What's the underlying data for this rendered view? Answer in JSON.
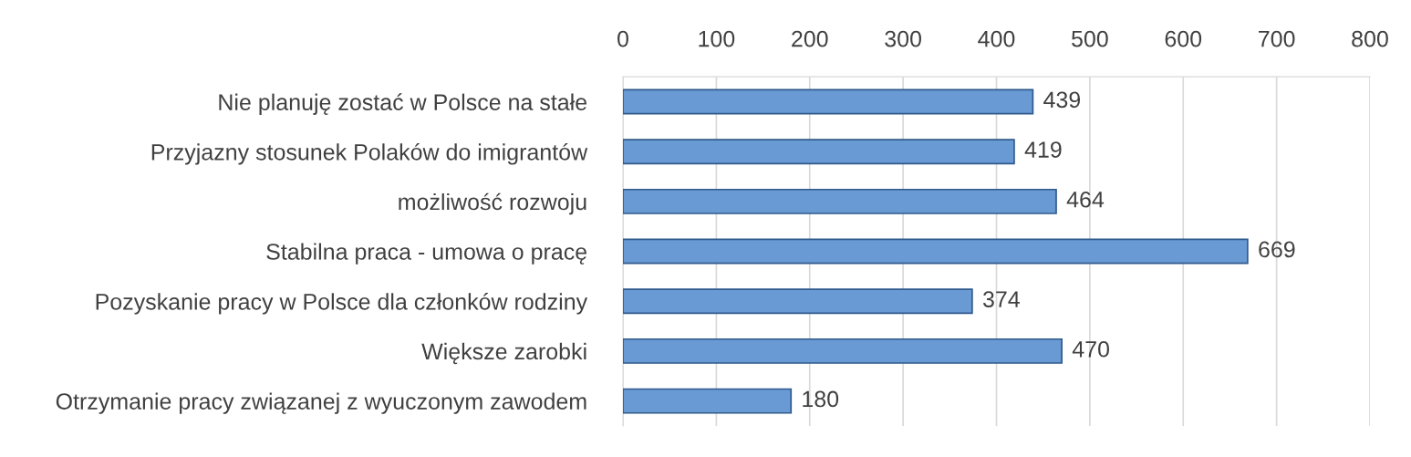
{
  "chart_data": {
    "type": "bar",
    "orientation": "horizontal",
    "categories": [
      "Nie planuję zostać w Polsce na stałe",
      "Przyjazny stosunek Polaków do imigrantów",
      "możliwość rozwoju",
      "Stabilna praca - umowa o pracę",
      "Pozyskanie pracy w Polsce dla członków rodziny",
      "Większe zarobki",
      "Otrzymanie pracy związanej z wyuczonym zawodem"
    ],
    "values": [
      439,
      419,
      464,
      669,
      374,
      470,
      180
    ],
    "color": "#6a9ad4",
    "xlim": [
      0,
      800
    ],
    "xticks": [
      0,
      100,
      200,
      300,
      400,
      500,
      600,
      700,
      800
    ],
    "grid": "x",
    "data_labels": true
  }
}
